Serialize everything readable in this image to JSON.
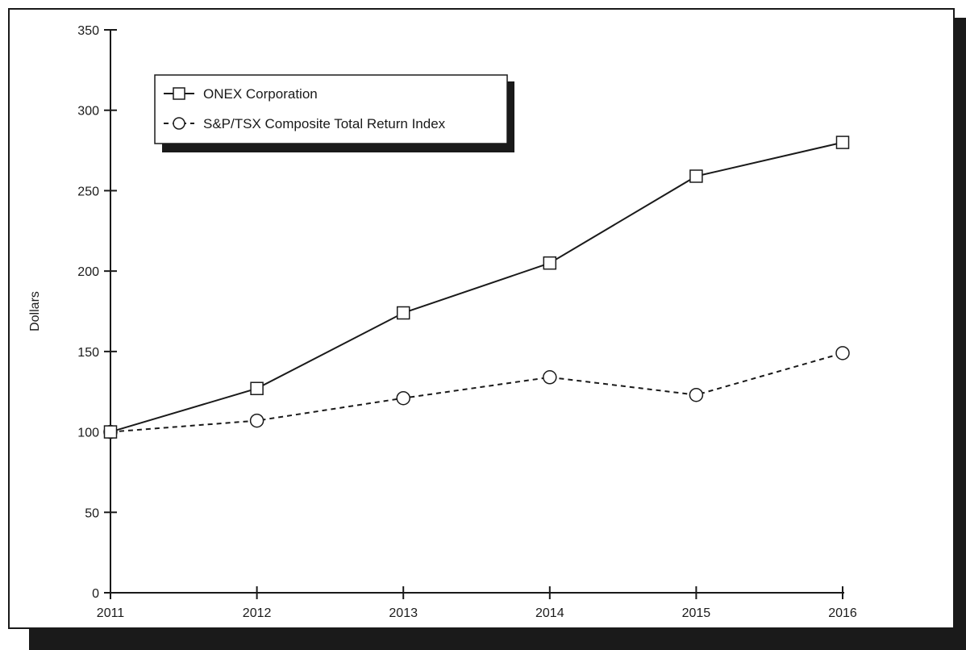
{
  "chart_data": {
    "type": "line",
    "title": "",
    "xlabel": "",
    "ylabel": "Dollars",
    "x": [
      "2011",
      "2012",
      "2013",
      "2014",
      "2015",
      "2016"
    ],
    "ylim": [
      0,
      350
    ],
    "yticks": [
      0,
      50,
      100,
      150,
      200,
      250,
      300,
      350
    ],
    "grid": false,
    "legend_position": "top-left",
    "series": [
      {
        "name": "ONEX Corporation",
        "marker": "square",
        "line_style": "solid",
        "values": [
          100,
          127,
          174,
          205,
          259,
          280
        ]
      },
      {
        "name": "S&P/TSX Composite Total Return Index",
        "marker": "circle",
        "line_style": "dashed",
        "values": [
          100,
          107,
          121,
          134,
          123,
          149
        ]
      }
    ]
  }
}
